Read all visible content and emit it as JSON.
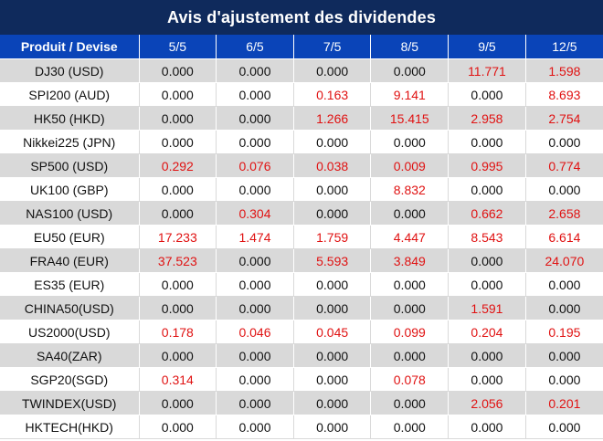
{
  "title": "Avis d'ajustement des dividendes",
  "header": {
    "product_label": "Produit / Devise",
    "dates": [
      "5/5",
      "6/5",
      "7/5",
      "8/5",
      "9/5",
      "12/5"
    ]
  },
  "colors": {
    "title_bg": "#0f2a5c",
    "header_bg": "#0a44b8",
    "highlight": "#e01212",
    "stripe": "#d9d9d9"
  },
  "rows": [
    {
      "product": "DJ30 (USD)",
      "values": [
        "0.000",
        "0.000",
        "0.000",
        "0.000",
        "11.771",
        "1.598"
      ]
    },
    {
      "product": "SPI200 (AUD)",
      "values": [
        "0.000",
        "0.000",
        "0.163",
        "9.141",
        "0.000",
        "8.693"
      ]
    },
    {
      "product": "HK50 (HKD)",
      "values": [
        "0.000",
        "0.000",
        "1.266",
        "15.415",
        "2.958",
        "2.754"
      ]
    },
    {
      "product": "Nikkei225 (JPN)",
      "values": [
        "0.000",
        "0.000",
        "0.000",
        "0.000",
        "0.000",
        "0.000"
      ]
    },
    {
      "product": "SP500 (USD)",
      "values": [
        "0.292",
        "0.076",
        "0.038",
        "0.009",
        "0.995",
        "0.774"
      ]
    },
    {
      "product": "UK100 (GBP)",
      "values": [
        "0.000",
        "0.000",
        "0.000",
        "8.832",
        "0.000",
        "0.000"
      ]
    },
    {
      "product": "NAS100 (USD)",
      "values": [
        "0.000",
        "0.304",
        "0.000",
        "0.000",
        "0.662",
        "2.658"
      ]
    },
    {
      "product": "EU50 (EUR)",
      "values": [
        "17.233",
        "1.474",
        "1.759",
        "4.447",
        "8.543",
        "6.614"
      ]
    },
    {
      "product": "FRA40 (EUR)",
      "values": [
        "37.523",
        "0.000",
        "5.593",
        "3.849",
        "0.000",
        "24.070"
      ]
    },
    {
      "product": "ES35 (EUR)",
      "values": [
        "0.000",
        "0.000",
        "0.000",
        "0.000",
        "0.000",
        "0.000"
      ]
    },
    {
      "product": "CHINA50(USD)",
      "values": [
        "0.000",
        "0.000",
        "0.000",
        "0.000",
        "1.591",
        "0.000"
      ]
    },
    {
      "product": "US2000(USD)",
      "values": [
        "0.178",
        "0.046",
        "0.045",
        "0.099",
        "0.204",
        "0.195"
      ]
    },
    {
      "product": "SA40(ZAR)",
      "values": [
        "0.000",
        "0.000",
        "0.000",
        "0.000",
        "0.000",
        "0.000"
      ]
    },
    {
      "product": "SGP20(SGD)",
      "values": [
        "0.314",
        "0.000",
        "0.000",
        "0.078",
        "0.000",
        "0.000"
      ]
    },
    {
      "product": "TWINDEX(USD)",
      "values": [
        "0.000",
        "0.000",
        "0.000",
        "0.000",
        "2.056",
        "0.201"
      ]
    },
    {
      "product": "HKTECH(HKD)",
      "values": [
        "0.000",
        "0.000",
        "0.000",
        "0.000",
        "0.000",
        "0.000"
      ]
    }
  ]
}
